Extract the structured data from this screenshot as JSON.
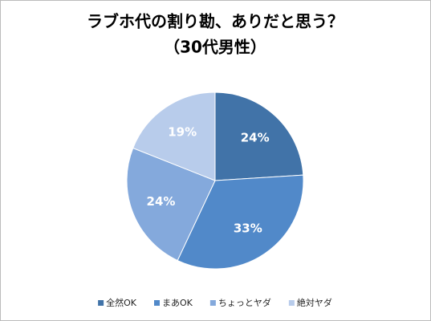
{
  "chart_data": {
    "type": "pie",
    "title": "ラブホ代の割り勘、ありだと思う？",
    "subtitle": "（30代男性）",
    "categories": [
      "全然OK",
      "まあOK",
      "ちょっとヤダ",
      "絶対ヤダ"
    ],
    "values": [
      24,
      33,
      24,
      19
    ],
    "value_labels": [
      "24%",
      "33%",
      "24%",
      "19%"
    ],
    "colors": [
      "#4173a8",
      "#5189c9",
      "#84a9dc",
      "#b8cceb"
    ],
    "legend": "bottom"
  }
}
